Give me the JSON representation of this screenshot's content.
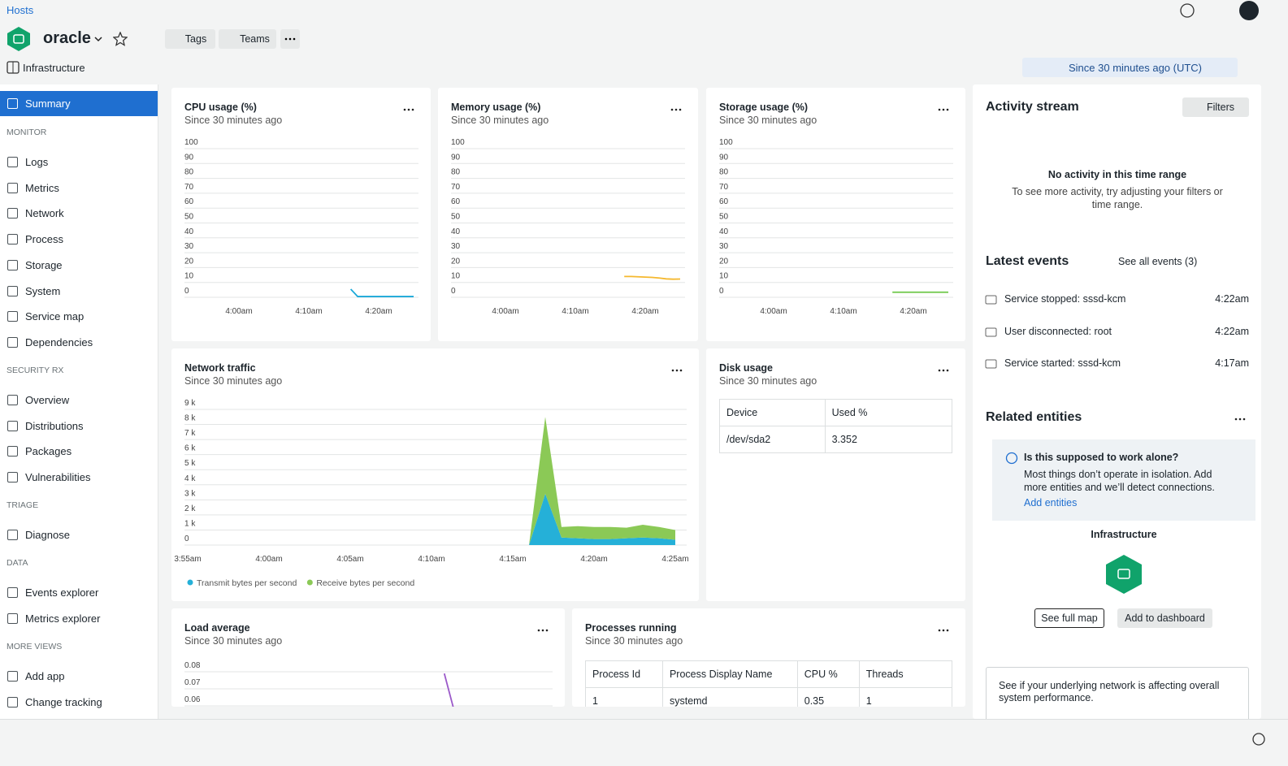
{
  "header": {
    "breadcrumb": "Hosts",
    "title": "oracle",
    "tags": "Tags",
    "teams": "Teams",
    "app": "Infrastructure",
    "time_range": "Since 30 minutes ago (UTC)"
  },
  "sidebar": {
    "active": "Summary",
    "sections": [
      {
        "title": "MONITOR",
        "items": [
          "Logs",
          "Metrics",
          "Network",
          "Process",
          "Storage",
          "System",
          "Service map",
          "Dependencies"
        ]
      },
      {
        "title": "SECURITY RX",
        "items": [
          "Overview",
          "Distributions",
          "Packages",
          "Vulnerabilities"
        ]
      },
      {
        "title": "TRIAGE",
        "items": [
          "Diagnose"
        ]
      },
      {
        "title": "DATA",
        "items": [
          "Events explorer",
          "Metrics explorer"
        ]
      },
      {
        "title": "MORE VIEWS",
        "items": [
          "Add app",
          "Change tracking"
        ]
      }
    ]
  },
  "widgets": [
    {
      "type": "line",
      "title": "CPU usage (%)",
      "subtitle": "Since 30 minutes ago",
      "xlim": [
        "3:52am",
        "4:26am"
      ],
      "xticks": [
        "4:00am",
        "4:10am",
        "4:20am"
      ],
      "ylim": [
        0,
        100
      ],
      "yticks": [
        0,
        10,
        20,
        30,
        40,
        50,
        60,
        70,
        80,
        90,
        100
      ],
      "series": [
        {
          "color": "#1aa8d8",
          "x": [
            "4:16am",
            "4:17am",
            "4:18am",
            "4:19am",
            "4:20am",
            "4:21am",
            "4:22am",
            "4:23am",
            "4:24am",
            "4:25am"
          ],
          "values": [
            5.5,
            0.5,
            0.5,
            0.5,
            0.5,
            0.5,
            0.5,
            0.5,
            0.5,
            0.5
          ]
        }
      ]
    },
    {
      "type": "line",
      "title": "Memory usage (%)",
      "subtitle": "Since 30 minutes ago",
      "xlim": [
        "3:52am",
        "4:26am"
      ],
      "xticks": [
        "4:00am",
        "4:10am",
        "4:20am"
      ],
      "ylim": [
        0,
        100
      ],
      "yticks": [
        0,
        10,
        20,
        30,
        40,
        50,
        60,
        70,
        80,
        90,
        100
      ],
      "series": [
        {
          "color": "#f5b82e",
          "x": [
            "4:17am",
            "4:18am",
            "4:19am",
            "4:20am",
            "4:21am",
            "4:22am",
            "4:23am",
            "4:24am",
            "4:25am"
          ],
          "values": [
            14,
            14,
            13.8,
            13.6,
            13.4,
            13,
            12.4,
            12.2,
            12.3
          ]
        }
      ]
    },
    {
      "type": "line",
      "title": "Storage usage (%)",
      "subtitle": "Since 30 minutes ago",
      "xlim": [
        "3:52am",
        "4:26am"
      ],
      "xticks": [
        "4:00am",
        "4:10am",
        "4:20am"
      ],
      "ylim": [
        0,
        100
      ],
      "yticks": [
        0,
        10,
        20,
        30,
        40,
        50,
        60,
        70,
        80,
        90,
        100
      ],
      "series": [
        {
          "color": "#6dc848",
          "x": [
            "4:17am",
            "4:18am",
            "4:19am",
            "4:20am",
            "4:21am",
            "4:22am",
            "4:23am",
            "4:24am",
            "4:25am"
          ],
          "values": [
            3.4,
            3.4,
            3.4,
            3.4,
            3.4,
            3.4,
            3.4,
            3.4,
            3.4
          ]
        }
      ]
    },
    {
      "type": "area",
      "title": "Network traffic",
      "subtitle": "Since 30 minutes ago",
      "xlim": [
        "3:55am",
        "4:26am"
      ],
      "xticks": [
        "3:55am",
        "4:00am",
        "4:05am",
        "4:10am",
        "4:15am",
        "4:20am",
        "4:25am"
      ],
      "ylim": [
        0,
        9000
      ],
      "yticks": [
        0,
        {
          "value": 1000,
          "label": "1 k"
        },
        {
          "value": 2000,
          "label": "2 k"
        },
        {
          "value": 3000,
          "label": "3 k"
        },
        {
          "value": 4000,
          "label": "4 k"
        },
        {
          "value": 5000,
          "label": "5 k"
        },
        {
          "value": 6000,
          "label": "6 k"
        },
        {
          "value": 7000,
          "label": "7 k"
        },
        {
          "value": 8000,
          "label": "8 k"
        },
        {
          "value": 9000,
          "label": "9 k"
        }
      ],
      "series": [
        {
          "name": "Transmit bytes per second",
          "color": "#25b0d8",
          "x": [
            "4:16am",
            "4:17am",
            "4:18am",
            "4:19am",
            "4:20am",
            "4:21am",
            "4:22am",
            "4:23am",
            "4:24am",
            "4:25am"
          ],
          "values": [
            0,
            3400,
            500,
            450,
            400,
            400,
            450,
            500,
            450,
            350
          ]
        },
        {
          "name": "Receive bytes per second",
          "color": "#8bc956",
          "x": [
            "4:16am",
            "4:17am",
            "4:18am",
            "4:19am",
            "4:20am",
            "4:21am",
            "4:22am",
            "4:23am",
            "4:24am",
            "4:25am"
          ],
          "values": [
            0,
            5100,
            700,
            800,
            800,
            800,
            700,
            850,
            750,
            650
          ]
        }
      ]
    },
    {
      "type": "line",
      "title": "Load average",
      "subtitle": "Since 30 minutes ago",
      "xlim": [
        "3:52am",
        "4:26am"
      ],
      "ylim": [
        0.05,
        0.08
      ],
      "yticks": [
        0.06,
        0.07,
        0.08
      ],
      "series": [
        {
          "color": "#9b59c9",
          "x": [
            "4:16am",
            "4:17am"
          ],
          "values": [
            0.079,
            0.055
          ]
        }
      ]
    }
  ],
  "disk_usage": {
    "title": "Disk usage",
    "subtitle": "Since 30 minutes ago",
    "columns": [
      "Device",
      "Used %"
    ],
    "rows": [
      [
        "/dev/sda2",
        "3.352"
      ]
    ]
  },
  "processes": {
    "title": "Processes running",
    "subtitle": "Since 30 minutes ago",
    "columns": [
      "Process Id",
      "Process Display Name",
      "CPU %",
      "Threads"
    ],
    "rows": [
      [
        "1",
        "systemd",
        "0.35",
        "1"
      ]
    ]
  },
  "activity": {
    "title": "Activity stream",
    "filters": "Filters",
    "empty_title": "No activity in this time range",
    "empty_text": "To see more activity, try adjusting your filters or time range."
  },
  "events": {
    "title": "Latest events",
    "see_all": "See all events (3)",
    "items": [
      {
        "name": "Service stopped: sssd-kcm",
        "time": "4:22am"
      },
      {
        "name": "User disconnected: root",
        "time": "4:22am"
      },
      {
        "name": "Service started: sssd-kcm",
        "time": "4:17am"
      }
    ]
  },
  "related": {
    "title": "Related entities",
    "info_title": "Is this supposed to work alone?",
    "info_text": "Most things don’t operate in isolation. Add more entities and we’ll detect connections.",
    "info_link": "Add entities",
    "entity": "Infrastructure",
    "see_map": "See full map",
    "add_dashboard": "Add to dashboard",
    "network_note": "See if your underlying network is affecting overall system performance."
  }
}
